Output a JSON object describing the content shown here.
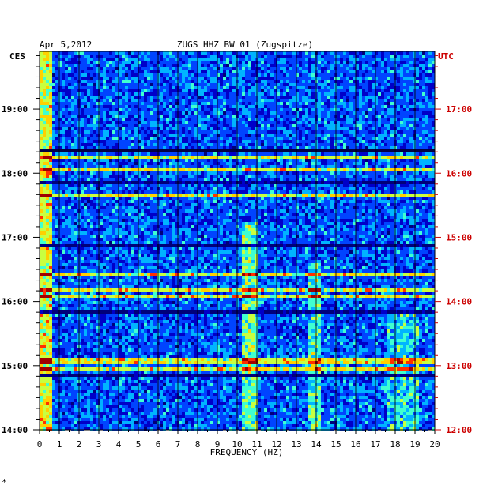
{
  "colors": {
    "background": "#ffffff",
    "left_axis": "#000000",
    "right_axis": "#cc0000",
    "grid": "#000000",
    "colormap": [
      "#00007a",
      "#0000c8",
      "#0044ff",
      "#00b4ff",
      "#40ffd0",
      "#c8ff40",
      "#ffd000",
      "#ff3000",
      "#a00000"
    ]
  },
  "chart_data": {
    "type": "heatmap",
    "title_date": "Apr 5,2012",
    "title_station": "ZUGS HHZ BW 01 (Zugspitze)",
    "left_timezone": "CES",
    "right_timezone": "UTC",
    "xlabel": "FREQUENCY (HZ)",
    "xlim": [
      0,
      20
    ],
    "x_ticks": [
      "0",
      "1",
      "2",
      "3",
      "4",
      "5",
      "6",
      "7",
      "8",
      "9",
      "10",
      "11",
      "12",
      "13",
      "14",
      "15",
      "16",
      "17",
      "18",
      "19",
      "20"
    ],
    "ylim_hours_cest": [
      14,
      19.9
    ],
    "left_ticks": [
      {
        "label": "19:00",
        "value": 19
      },
      {
        "label": "18:00",
        "value": 18
      },
      {
        "label": "17:00",
        "value": 17
      },
      {
        "label": "16:00",
        "value": 16
      },
      {
        "label": "15:00",
        "value": 15
      },
      {
        "label": "14:00",
        "value": 14
      }
    ],
    "right_ticks": [
      {
        "label": "17:00",
        "value": 19
      },
      {
        "label": "16:00",
        "value": 18
      },
      {
        "label": "15:00",
        "value": 17
      },
      {
        "label": "14:00",
        "value": 16
      },
      {
        "label": "13:00",
        "value": 15
      },
      {
        "label": "12:00",
        "value": 14
      }
    ],
    "footnote": "*",
    "grid": true
  }
}
